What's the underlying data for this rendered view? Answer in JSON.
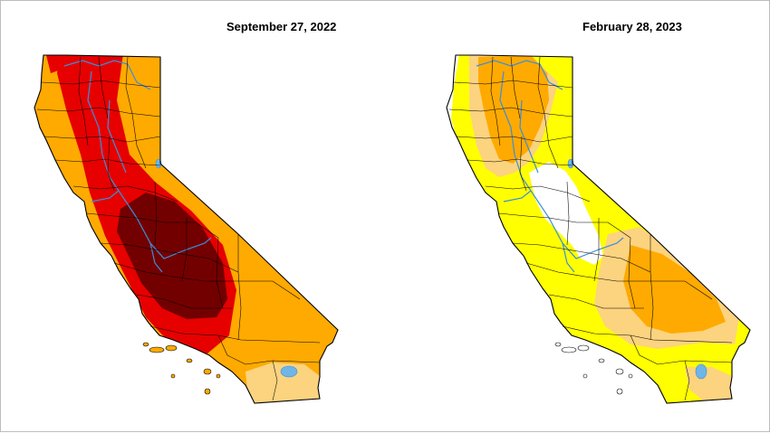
{
  "maps": [
    {
      "date_label": "September 27, 2022"
    },
    {
      "date_label": "February 28, 2023"
    }
  ],
  "colors": {
    "none": "#ffffff",
    "abnormally_dry": "#ffff00",
    "moderate": "#fcd37f",
    "severe": "#ffaa00",
    "extreme": "#e60000",
    "exceptional": "#730000",
    "water": "#6fb5e6",
    "border": "#000000",
    "rivers": "#3a8fd9"
  }
}
